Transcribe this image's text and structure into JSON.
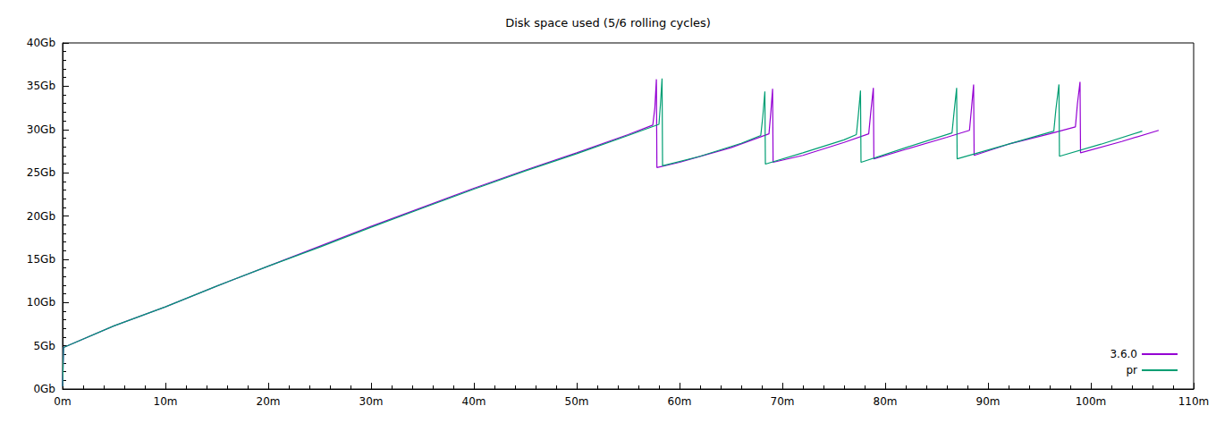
{
  "chart_data": {
    "type": "line",
    "title": "Disk space used (5/6 rolling cycles)",
    "xlim": [
      0,
      110
    ],
    "xticks": [
      {
        "value": 0,
        "label": "0m"
      },
      {
        "value": 10,
        "label": "10m"
      },
      {
        "value": 20,
        "label": "20m"
      },
      {
        "value": 30,
        "label": "30m"
      },
      {
        "value": 40,
        "label": "40m"
      },
      {
        "value": 50,
        "label": "50m"
      },
      {
        "value": 60,
        "label": "60m"
      },
      {
        "value": 70,
        "label": "70m"
      },
      {
        "value": 80,
        "label": "80m"
      },
      {
        "value": 90,
        "label": "90m"
      },
      {
        "value": 100,
        "label": "100m"
      },
      {
        "value": 110,
        "label": "110m"
      }
    ],
    "ylim": [
      0,
      40
    ],
    "yticks": [
      {
        "value": 0,
        "label": "0Gb"
      },
      {
        "value": 5,
        "label": "5Gb"
      },
      {
        "value": 10,
        "label": "10Gb"
      },
      {
        "value": 15,
        "label": "15Gb"
      },
      {
        "value": 20,
        "label": "20Gb"
      },
      {
        "value": 25,
        "label": "25Gb"
      },
      {
        "value": 30,
        "label": "30Gb"
      },
      {
        "value": 35,
        "label": "35Gb"
      },
      {
        "value": 40,
        "label": "40Gb"
      }
    ],
    "grid": false,
    "legend": "lower right",
    "series": [
      {
        "name": "3.6.0",
        "color": "#9400d3",
        "x": [
          0,
          0.1,
          5,
          10,
          15,
          20,
          25,
          30,
          35,
          40,
          45,
          50,
          55,
          57.4,
          57.6,
          57.75,
          57.8,
          60,
          65,
          68.7,
          68.9,
          69.05,
          69.1,
          72,
          76,
          78.4,
          78.6,
          78.85,
          78.9,
          82,
          86,
          88.2,
          88.4,
          88.6,
          88.65,
          92,
          96,
          98.5,
          98.7,
          98.95,
          99.0,
          103,
          106.6
        ],
        "values": [
          0.3,
          4.8,
          7.3,
          9.5,
          11.9,
          14.2,
          16.5,
          18.8,
          21.0,
          23.2,
          25.3,
          27.3,
          29.4,
          30.5,
          32.5,
          35.8,
          25.6,
          26.2,
          27.9,
          29.5,
          32.3,
          34.7,
          26.2,
          27.0,
          28.5,
          29.5,
          32.0,
          34.8,
          26.6,
          27.7,
          29.1,
          29.9,
          32.5,
          35.2,
          27.0,
          28.3,
          29.5,
          30.3,
          33.0,
          35.5,
          27.3,
          28.6,
          29.9
        ]
      },
      {
        "name": "pr",
        "color": "#009e73",
        "x": [
          0,
          0.1,
          5,
          10,
          15,
          20,
          25,
          30,
          35,
          40,
          45,
          50,
          55,
          58.0,
          58.15,
          58.3,
          58.35,
          62,
          66,
          67.9,
          68.1,
          68.3,
          68.35,
          72,
          76,
          77.2,
          77.4,
          77.6,
          77.65,
          82,
          86.5,
          86.7,
          86.95,
          87.0,
          92,
          96.4,
          96.6,
          96.9,
          96.95,
          101,
          105.0
        ],
        "values": [
          0.3,
          4.8,
          7.3,
          9.5,
          11.9,
          14.2,
          16.4,
          18.7,
          20.9,
          23.1,
          25.2,
          27.2,
          29.3,
          30.6,
          33.0,
          35.9,
          25.8,
          26.9,
          28.4,
          29.3,
          31.5,
          34.4,
          26.0,
          27.3,
          28.8,
          29.4,
          31.8,
          34.5,
          26.2,
          27.9,
          29.6,
          32.0,
          34.8,
          26.6,
          28.3,
          29.8,
          32.3,
          35.2,
          26.9,
          28.3,
          29.8
        ]
      }
    ]
  }
}
